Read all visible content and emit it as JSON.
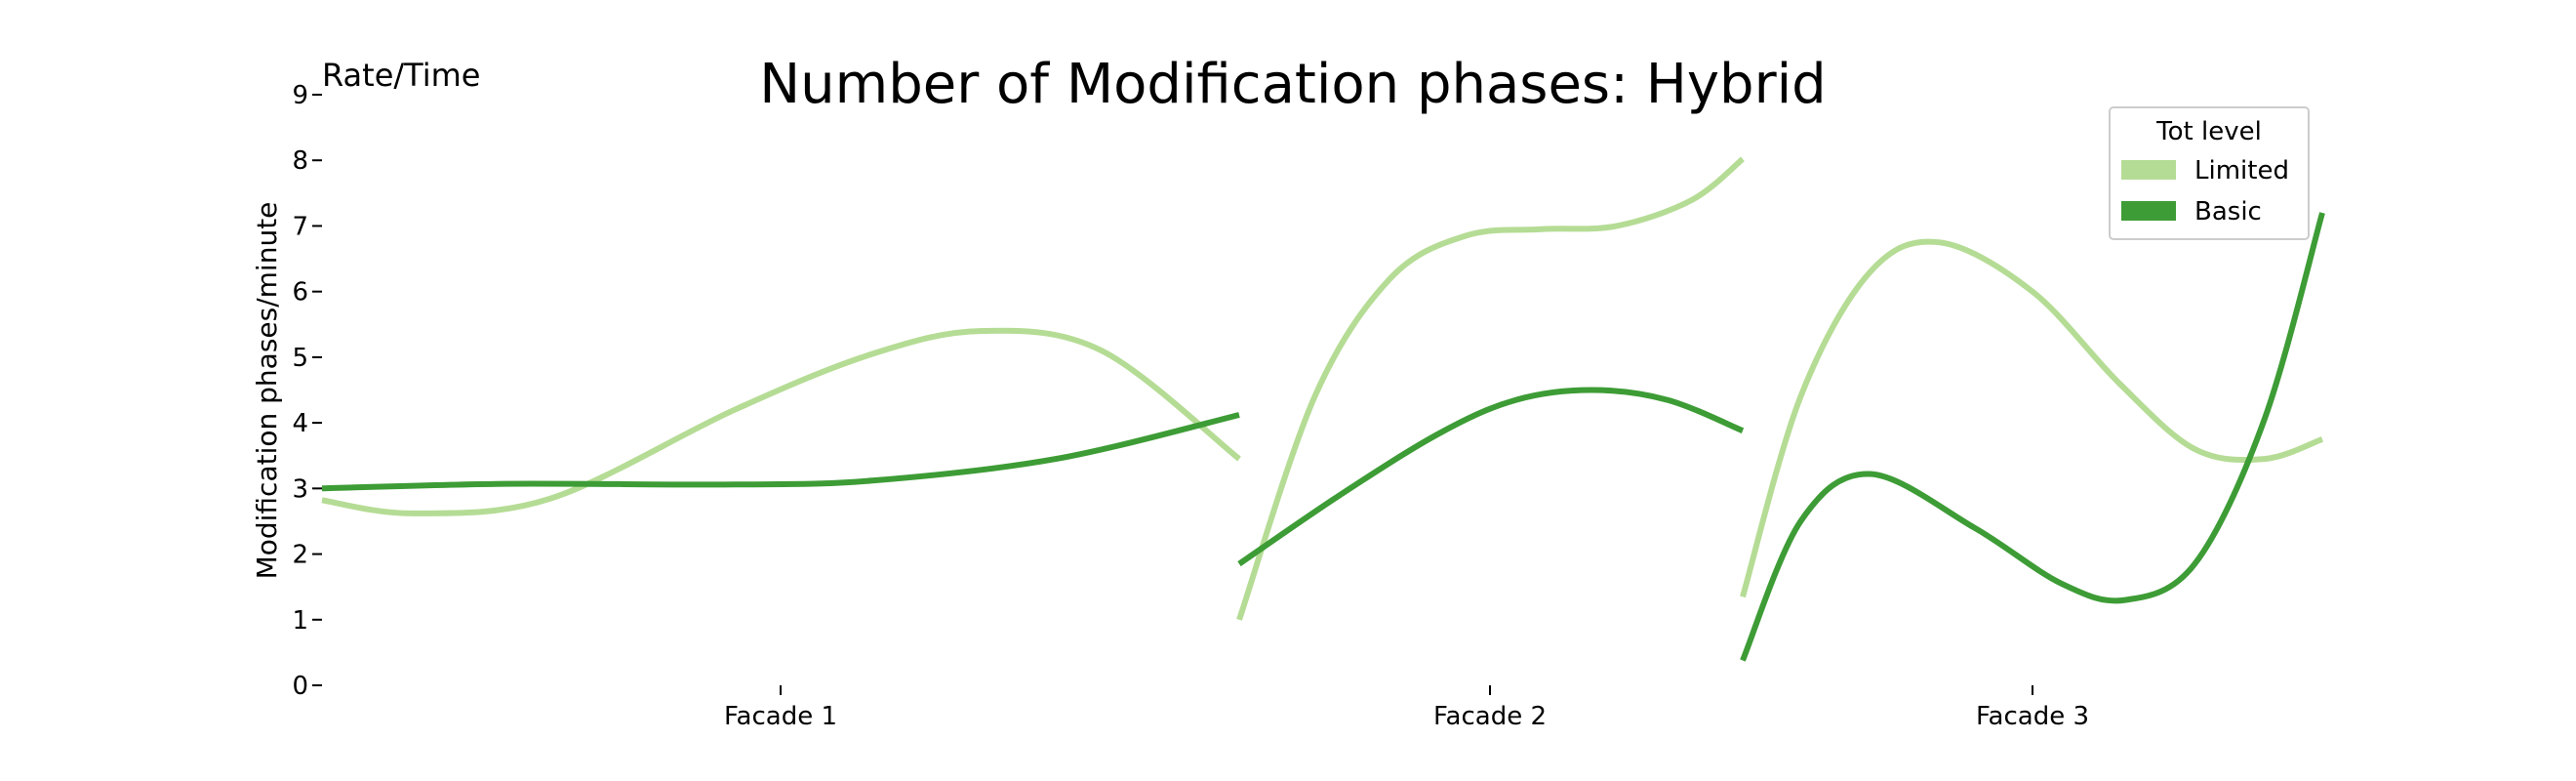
{
  "chart_data": {
    "type": "line",
    "title": "Number of Modification phases: Hybrid",
    "corner_label": "Rate/Time",
    "ylabel": "Modification phases/minute",
    "xlabel": "",
    "ylim": [
      0,
      9
    ],
    "yticks": [
      0,
      1,
      2,
      3,
      4,
      5,
      6,
      7,
      8,
      9
    ],
    "categories": [
      "Facade 1",
      "Facade 2",
      "Facade 3"
    ],
    "grid": false,
    "legend": {
      "title": "Tot level",
      "position": "top-right"
    },
    "colors": {
      "Limited": "#b5dc95",
      "Basic": "#3d9c35"
    },
    "panels": [
      {
        "category": "Facade 1",
        "series": [
          {
            "name": "Limited",
            "points": [
              [
                0,
                2.82
              ],
              [
                0.1,
                2.62
              ],
              [
                0.25,
                2.85
              ],
              [
                0.45,
                4.2
              ],
              [
                0.6,
                5.05
              ],
              [
                0.72,
                5.4
              ],
              [
                0.85,
                5.1
              ],
              [
                1,
                3.45
              ]
            ]
          },
          {
            "name": "Basic",
            "points": [
              [
                0,
                3.0
              ],
              [
                0.2,
                3.07
              ],
              [
                0.45,
                3.06
              ],
              [
                0.6,
                3.12
              ],
              [
                0.8,
                3.45
              ],
              [
                1,
                4.12
              ]
            ]
          }
        ]
      },
      {
        "category": "Facade 2",
        "series": [
          {
            "name": "Limited",
            "points": [
              [
                0,
                1.0
              ],
              [
                0.15,
                4.4
              ],
              [
                0.3,
                6.2
              ],
              [
                0.45,
                6.85
              ],
              [
                0.6,
                6.95
              ],
              [
                0.75,
                7.0
              ],
              [
                0.9,
                7.4
              ],
              [
                1,
                8.02
              ]
            ]
          },
          {
            "name": "Basic",
            "points": [
              [
                0,
                1.85
              ],
              [
                0.2,
                2.9
              ],
              [
                0.4,
                3.85
              ],
              [
                0.55,
                4.35
              ],
              [
                0.7,
                4.5
              ],
              [
                0.85,
                4.35
              ],
              [
                1,
                3.88
              ]
            ]
          }
        ]
      },
      {
        "category": "Facade 3",
        "series": [
          {
            "name": "Limited",
            "points": [
              [
                0,
                1.35
              ],
              [
                0.1,
                4.4
              ],
              [
                0.22,
                6.3
              ],
              [
                0.34,
                6.75
              ],
              [
                0.5,
                6.0
              ],
              [
                0.65,
                4.6
              ],
              [
                0.78,
                3.6
              ],
              [
                0.9,
                3.45
              ],
              [
                1,
                3.75
              ]
            ]
          },
          {
            "name": "Basic",
            "points": [
              [
                0,
                0.38
              ],
              [
                0.1,
                2.5
              ],
              [
                0.22,
                3.22
              ],
              [
                0.4,
                2.4
              ],
              [
                0.55,
                1.55
              ],
              [
                0.66,
                1.3
              ],
              [
                0.78,
                1.85
              ],
              [
                0.9,
                4.05
              ],
              [
                1,
                7.2
              ]
            ]
          }
        ]
      }
    ]
  }
}
